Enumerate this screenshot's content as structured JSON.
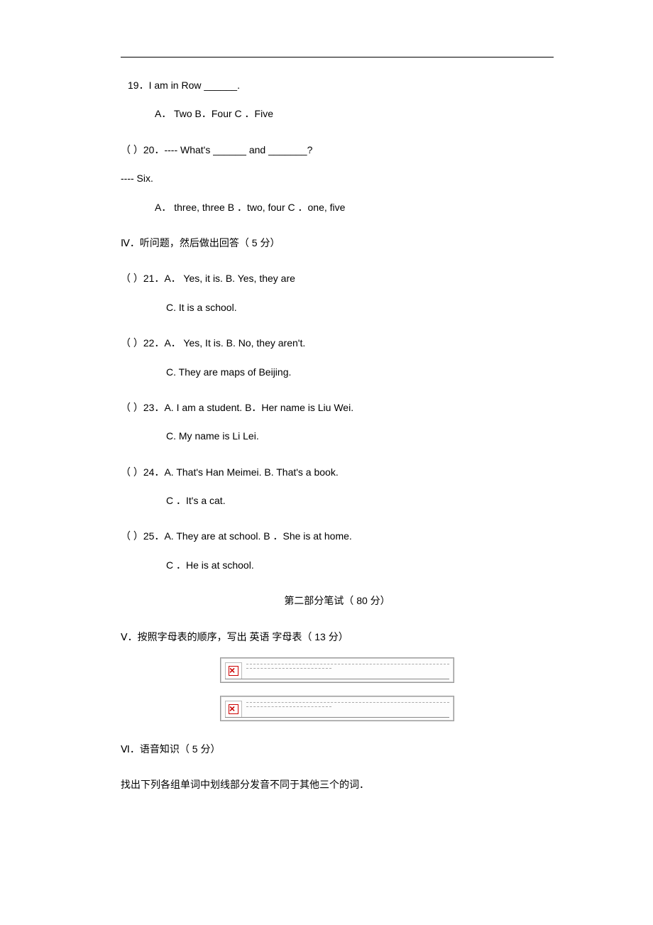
{
  "q19": {
    "stem": "19．I am in Row ______.",
    "options": "A． Two B．Four C ．Five"
  },
  "q20": {
    "stem": "（   ）20．---- What's ______ and _______?",
    "follow": "---- Six.",
    "options": "A． three, three B      ．two, four C     ．one, five"
  },
  "section4": "Ⅳ．听问题，然后做出回答（     5 分）",
  "q21": {
    "lineA": "（   ）21．A． Yes, it is.                      B.   Yes, they are",
    "lineC": "C.   It is a school."
  },
  "q22": {
    "lineA": "（   ）22．A． Yes, It is.                     B.   No, they aren't.",
    "lineC": "C.   They are maps of Beijing."
  },
  "q23": {
    "lineA": "（   ）23．A.  I am a student.           B．Her name is Liu Wei.",
    "lineC": "C.   My name is Li Lei."
  },
  "q24": {
    "lineA": "（   ）24．A.   That's Han Meimei.         B.   That's a book.",
    "lineC": "C ．It's a cat."
  },
  "q25": {
    "lineA": "（   ）25．A.   They are at school. B         ．She is at home.",
    "lineC": "C ．He is at school."
  },
  "part2": "第二部分笔试（   80 分）",
  "section5": "Ⅴ．按照字母表的顺序，写出     英语 字母表（  13 分）",
  "section6": "Ⅵ．语音知识（    5 分）",
  "instruction6": "找出下列各组单词中划线部分发音不同于其他三个的词．"
}
